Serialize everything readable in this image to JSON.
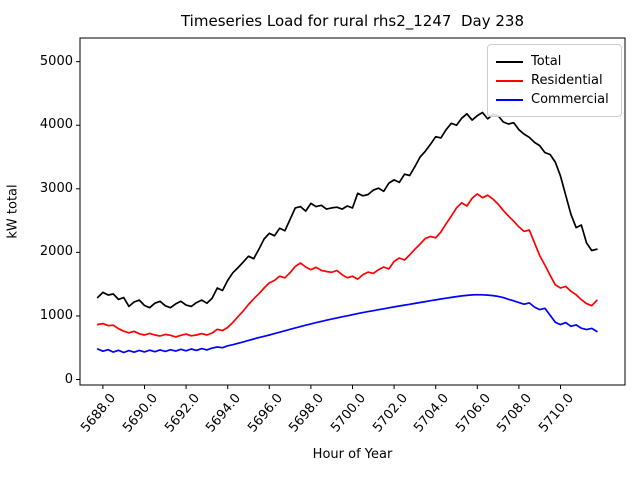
{
  "title": "Timeseries Load for rural rhs2_1247  Day 238",
  "chart_data": {
    "type": "line",
    "title": "Timeseries Load for rural rhs2_1247  Day 238",
    "xlabel": "Hour of Year",
    "ylabel": "kW total",
    "grid": false,
    "legend_position": "upper right",
    "xlim": [
      5686.9,
      5713.1
    ],
    "ylim": [
      -86,
      5372
    ],
    "x_ticks": [
      5688,
      5690,
      5692,
      5694,
      5696,
      5698,
      5700,
      5702,
      5704,
      5706,
      5708,
      5710
    ],
    "x_tick_labels": [
      "5688.0",
      "5690.0",
      "5692.0",
      "5694.0",
      "5696.0",
      "5698.0",
      "5700.0",
      "5702.0",
      "5704.0",
      "5706.0",
      "5708.0",
      "5710.0"
    ],
    "y_ticks": [
      0,
      1000,
      2000,
      3000,
      4000,
      5000
    ],
    "y_tick_labels": [
      "0",
      "1000",
      "2000",
      "3000",
      "4000",
      "5000"
    ],
    "x_start": 5687.75,
    "x_step": 0.25,
    "series": [
      {
        "name": "Total",
        "color": "#000000",
        "values": [
          1290,
          1370,
          1330,
          1345,
          1260,
          1290,
          1150,
          1220,
          1250,
          1165,
          1130,
          1200,
          1230,
          1160,
          1130,
          1190,
          1230,
          1170,
          1150,
          1210,
          1250,
          1200,
          1280,
          1440,
          1400,
          1560,
          1680,
          1760,
          1850,
          1940,
          1900,
          2050,
          2210,
          2300,
          2260,
          2380,
          2340,
          2520,
          2700,
          2720,
          2650,
          2770,
          2720,
          2740,
          2680,
          2700,
          2710,
          2680,
          2730,
          2700,
          2930,
          2890,
          2910,
          2980,
          3010,
          2960,
          3090,
          3140,
          3100,
          3230,
          3210,
          3350,
          3500,
          3590,
          3700,
          3820,
          3800,
          3930,
          4030,
          4000,
          4110,
          4180,
          4080,
          4150,
          4200,
          4100,
          4170,
          4150,
          4050,
          4020,
          4040,
          3930,
          3860,
          3810,
          3730,
          3680,
          3570,
          3540,
          3420,
          3200,
          2900,
          2600,
          2390,
          2430,
          2150,
          2030,
          2050
        ]
      },
      {
        "name": "Residential",
        "color": "#ff0000",
        "values": [
          865,
          880,
          848,
          855,
          800,
          760,
          735,
          758,
          720,
          700,
          725,
          700,
          685,
          710,
          695,
          670,
          695,
          715,
          688,
          700,
          722,
          700,
          730,
          790,
          770,
          820,
          900,
          990,
          1080,
          1180,
          1270,
          1350,
          1440,
          1520,
          1560,
          1625,
          1600,
          1680,
          1780,
          1833,
          1770,
          1728,
          1765,
          1717,
          1700,
          1686,
          1715,
          1649,
          1600,
          1625,
          1580,
          1650,
          1690,
          1670,
          1728,
          1770,
          1740,
          1858,
          1911,
          1880,
          1960,
          2050,
          2130,
          2220,
          2250,
          2230,
          2320,
          2450,
          2570,
          2700,
          2780,
          2730,
          2850,
          2920,
          2860,
          2900,
          2840,
          2760,
          2660,
          2570,
          2490,
          2400,
          2330,
          2350,
          2150,
          1950,
          1800,
          1640,
          1490,
          1440,
          1465,
          1390,
          1335,
          1258,
          1195,
          1162,
          1246
        ]
      },
      {
        "name": "Commercial",
        "color": "#0000ff",
        "values": [
          480,
          445,
          470,
          432,
          460,
          425,
          455,
          430,
          458,
          435,
          462,
          438,
          466,
          443,
          470,
          448,
          475,
          452,
          480,
          458,
          486,
          466,
          495,
          512,
          500,
          530,
          548,
          570,
          592,
          615,
          638,
          660,
          680,
          700,
          722,
          744,
          766,
          790,
          812,
          833,
          854,
          875,
          895,
          914,
          933,
          951,
          969,
          986,
          1003,
          1020,
          1037,
          1053,
          1068,
          1083,
          1098,
          1113,
          1128,
          1142,
          1156,
          1170,
          1184,
          1198,
          1212,
          1226,
          1240,
          1253,
          1266,
          1279,
          1292,
          1304,
          1315,
          1324,
          1331,
          1335,
          1333,
          1328,
          1320,
          1308,
          1288,
          1262,
          1238,
          1210,
          1185,
          1205,
          1140,
          1100,
          1120,
          1010,
          900,
          864,
          895,
          837,
          860,
          808,
          785,
          805,
          755
        ]
      }
    ]
  }
}
